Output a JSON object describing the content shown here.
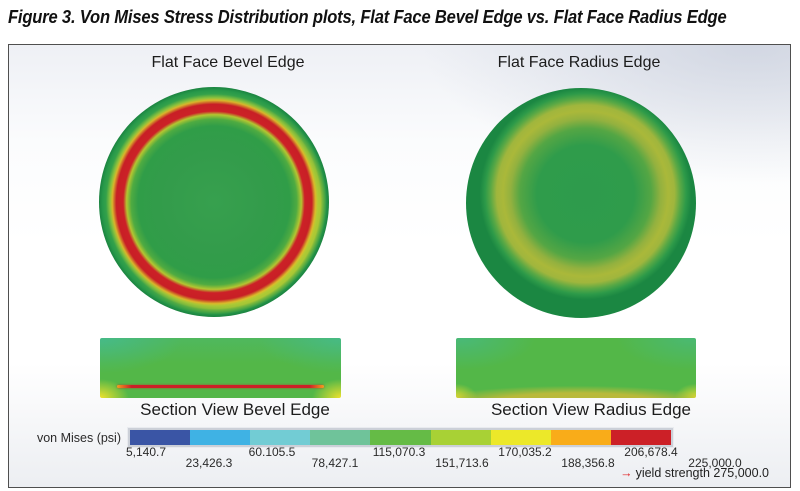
{
  "title": "Figure 3. Von Mises Stress Distribution plots, Flat Face Bevel Edge vs. Flat Face Radius Edge",
  "panels": {
    "bevel": {
      "label": "Flat Face Bevel Edge",
      "section_label": "Section View Bevel Edge"
    },
    "radius": {
      "label": "Flat Face Radius Edge",
      "section_label": "Section View Radius Edge"
    }
  },
  "legend": {
    "label": "von Mises (psi)",
    "ticks": [
      "5,140.7",
      "23,426.3",
      "60.105.5",
      "78,427.1",
      "115,070.3",
      "151,713.6",
      "170,035.2",
      "188,356.8",
      "206,678.4",
      "225,000.0"
    ],
    "colors": [
      "#3a55a5",
      "#3fb2e4",
      "#72ccd4",
      "#6fc39a",
      "#65bb46",
      "#a8d135",
      "#ece829",
      "#f9ac19",
      "#cc2027"
    ],
    "yield_arrow": "→",
    "yield_note": "yield strength 275,000.0",
    "yield_color": "#e02225"
  },
  "chart_data": {
    "type": "heatmap",
    "title": "Figure 3. Von Mises Stress Distribution plots, Flat Face Bevel Edge vs. Flat Face Radius Edge",
    "colorbar": {
      "label": "von Mises (psi)",
      "tick_labels": [
        "5,140.7",
        "23,426.3",
        "60.105.5",
        "78,427.1",
        "115,070.3",
        "151,713.6",
        "170,035.2",
        "188,356.8",
        "206,678.4",
        "225,000.0"
      ],
      "tick_values": [
        5140.7,
        23426.3,
        60105.5,
        78427.1,
        115070.3,
        151713.6,
        170035.2,
        188356.8,
        206678.4,
        225000.0
      ],
      "segment_colors": [
        "#3a55a5",
        "#3fb2e4",
        "#72ccd4",
        "#6fc39a",
        "#65bb46",
        "#a8d135",
        "#ece829",
        "#f9ac19",
        "#cc2027"
      ],
      "range_psi": [
        5140.7,
        225000.0
      ],
      "annotation": "yield strength 275,000.0",
      "legend_position": "bottom"
    },
    "panels": [
      {
        "name": "Flat Face Bevel Edge",
        "view": "front face contour",
        "summary": "Green disc (~115,000 psi) with a narrow red ring (~206,678-225,000 psi) just inside the rim, bounded by thin yellow transition bands; green outer rim."
      },
      {
        "name": "Flat Face Radius Edge",
        "view": "front face contour",
        "summary": "Green disc with a broad diffuse olive/yellow-green annulus (~151,000-170,000 psi) near the rim; no red peak-stress ring."
      },
      {
        "name": "Section View Bevel Edge",
        "view": "cross-section contour",
        "summary": "Mostly green with teal shading at top corners, yellow hot spots at bottom corners, and a thin continuous red max-stress line along the bottom face."
      },
      {
        "name": "Section View Radius Edge",
        "view": "cross-section contour",
        "summary": "Mostly green with teal shading at top corners and an olive-yellow band along the curved bottom face; no red line."
      }
    ]
  }
}
